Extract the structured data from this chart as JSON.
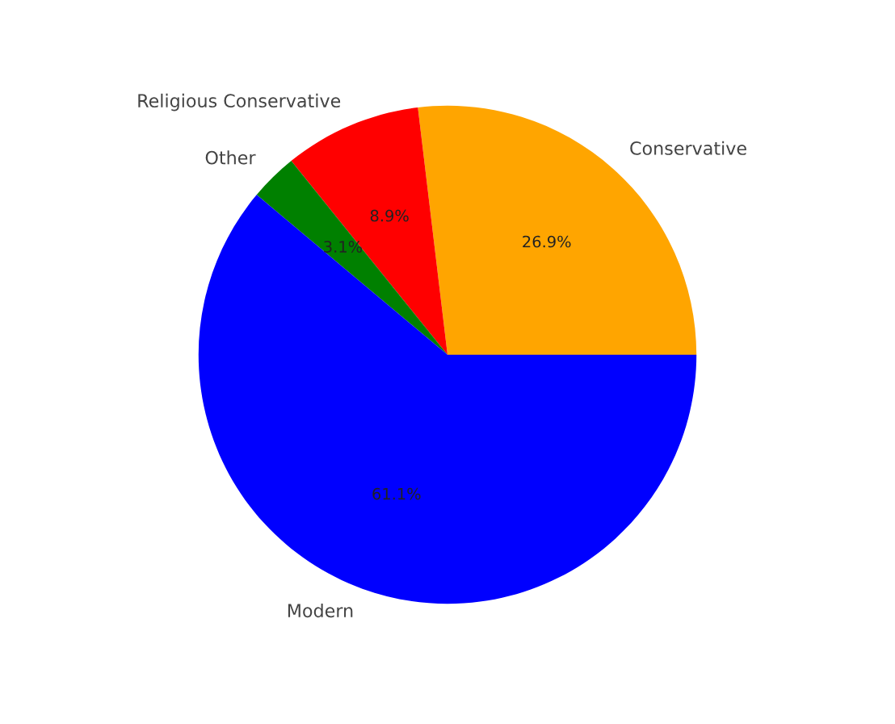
{
  "chart_data": {
    "type": "pie",
    "categories": [
      "Conservative",
      "Religious Conservative",
      "Other",
      "Modern"
    ],
    "values": [
      26.9,
      8.9,
      3.1,
      61.1
    ],
    "value_labels": [
      "26.9%",
      "8.9%",
      "3.1%",
      "61.1%"
    ],
    "colors": [
      "#ffa500",
      "#ff0000",
      "#008000",
      "#0000ff"
    ]
  }
}
